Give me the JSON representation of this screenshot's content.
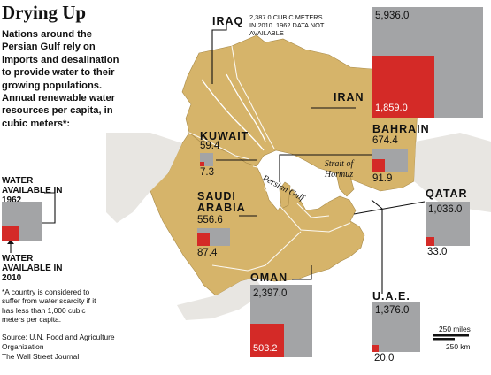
{
  "header": {
    "title": "Drying Up",
    "intro": "Nations around the Persian Gulf rely on imports and desalination to provide water to their growing populations. Annual renewable water resources per capita, in cubic meters*:"
  },
  "legend": {
    "water_1962": "WATER AVAILABLE IN 1962",
    "water_2010": "WATER AVAILABLE IN 2010"
  },
  "footnote": "*A country is considered to suffer from water scarcity if it has less than 1,000 cubic meters per capita.",
  "source": {
    "line1": "Source: U.N. Food and Agriculture Organization",
    "line2": "The Wall Street Journal"
  },
  "countries": {
    "iraq": {
      "name": "IRAQ",
      "note": "2,387.0 cubic meters in 2010. 1962 data not available"
    },
    "iran": {
      "name": "IRAN",
      "v1962": "5,936.0",
      "v2010": "1,859.0",
      "n1962": 5936.0,
      "n2010": 1859.0
    },
    "kuwait": {
      "name": "KUWAIT",
      "v1962": "59.4",
      "v2010": "7.3",
      "n1962": 59.4,
      "n2010": 7.3
    },
    "bahrain": {
      "name": "BAHRAIN",
      "v1962": "674.4",
      "v2010": "91.9",
      "n1962": 674.4,
      "n2010": 91.9
    },
    "saudi": {
      "name1": "SAUDI",
      "name2": "ARABIA",
      "v1962": "556.6",
      "v2010": "87.4",
      "n1962": 556.6,
      "n2010": 87.4
    },
    "qatar": {
      "name": "QATAR",
      "v1962": "1,036.0",
      "v2010": "33.0",
      "n1962": 1036.0,
      "n2010": 33.0
    },
    "oman": {
      "name": "OMAN",
      "v1962": "2,397.0",
      "v2010": "503.2",
      "n1962": 2397.0,
      "n2010": 503.2
    },
    "uae": {
      "name": "U.A.E.",
      "v1962": "1,376.0",
      "v2010": "20.0",
      "n1962": 1376.0,
      "n2010": 20.0
    }
  },
  "map_labels": {
    "strait": "Strait of Hormuz",
    "gulf": "Persian Gulf"
  },
  "scale": {
    "miles": "250 miles",
    "km": "250 km"
  },
  "colors": {
    "land": "#d6b46a",
    "water": "#ffffff",
    "box_1962": "#a3a4a6",
    "box_2010": "#d42a27"
  }
}
